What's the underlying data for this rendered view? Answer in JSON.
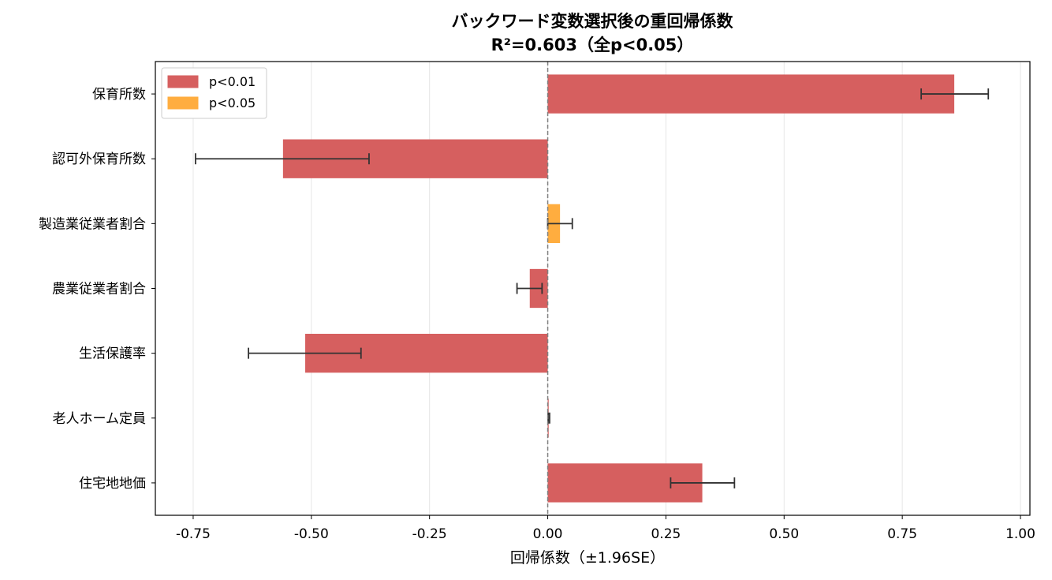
{
  "chart_data": {
    "type": "bar",
    "orientation": "horizontal",
    "title": "バックワード変数選択後の重回帰係数",
    "subtitle": "R²=0.603（全p<0.05）",
    "xlabel": "回帰係数（±1.96SE）",
    "ylabel": "",
    "xlim": [
      -0.83,
      1.02
    ],
    "xticks": [
      -0.75,
      -0.5,
      -0.25,
      0.0,
      0.25,
      0.5,
      0.75,
      1.0
    ],
    "xtick_labels": [
      "-0.75",
      "-0.50",
      "-0.25",
      "0.00",
      "0.25",
      "0.50",
      "0.75",
      "1.00"
    ],
    "grid": "x",
    "reference_line": 0,
    "legend_position": "top-left",
    "legend": [
      {
        "label": "p<0.01",
        "color": "#d65f5f"
      },
      {
        "label": "p<0.05",
        "color": "#ffad3f"
      }
    ],
    "categories": [
      "保育所数",
      "認可外保育所数",
      "製造業従業者割合",
      "農業従業者割合",
      "生活保護率",
      "老人ホーム定員",
      "住宅地地価"
    ],
    "values": [
      0.86,
      -0.56,
      0.026,
      -0.038,
      -0.513,
      0.002,
      0.327
    ],
    "error_low": [
      0.79,
      -0.745,
      0.0,
      -0.065,
      -0.633,
      0.001,
      0.26
    ],
    "error_high": [
      0.932,
      -0.378,
      0.052,
      -0.012,
      -0.395,
      0.004,
      0.395
    ],
    "significance": [
      "p<0.01",
      "p<0.01",
      "p<0.05",
      "p<0.01",
      "p<0.01",
      "p<0.01",
      "p<0.01"
    ]
  }
}
